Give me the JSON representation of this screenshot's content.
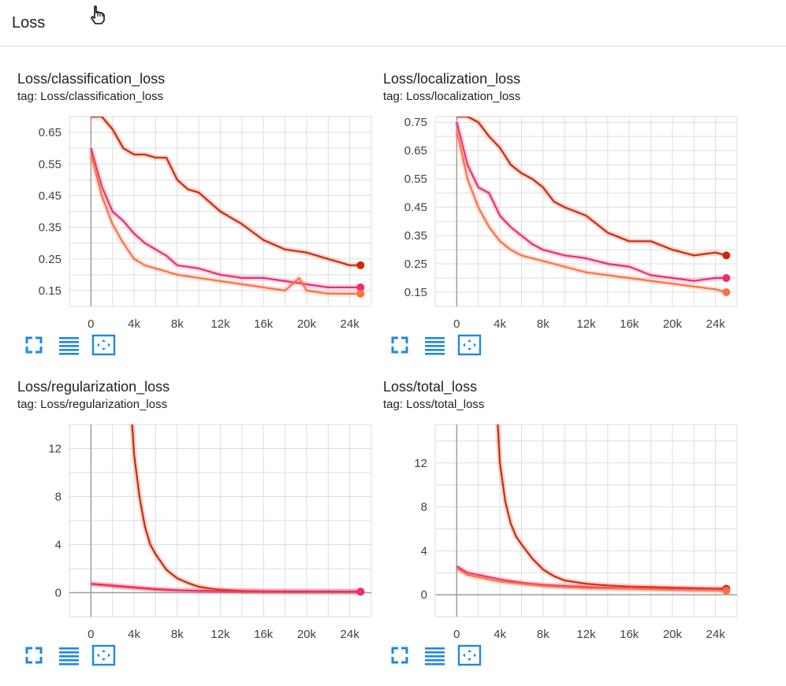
{
  "header": {
    "title": "Loss"
  },
  "colors": {
    "series_dark": "#cc2a0a",
    "series_orange": "#ff7043",
    "series_pink": "#ec2e6e",
    "axis": "#9e9e9e",
    "grid": "#dddddd",
    "toolbar_icon": "#1e88e5"
  },
  "toolbar_icons": [
    "fullscreen-icon",
    "data-table-icon",
    "fit-domain-icon"
  ],
  "cards": [
    {
      "title": "Loss/classification_loss",
      "tag": "tag: Loss/classification_loss"
    },
    {
      "title": "Loss/localization_loss",
      "tag": "tag: Loss/localization_loss"
    },
    {
      "title": "Loss/regularization_loss",
      "tag": "tag: Loss/regularization_loss"
    },
    {
      "title": "Loss/total_loss",
      "tag": "tag: Loss/total_loss"
    }
  ],
  "chart_data": [
    {
      "type": "line",
      "title": "Loss/classification_loss",
      "xlabel": "",
      "ylabel": "",
      "x_ticks": [
        "0",
        "4k",
        "8k",
        "12k",
        "16k",
        "20k",
        "24k"
      ],
      "y_ticks": [
        "0.15",
        "0.25",
        "0.35",
        "0.45",
        "0.55",
        "0.65"
      ],
      "xlim": [
        -2000,
        26000
      ],
      "ylim": [
        0.1,
        0.7
      ],
      "grid": true,
      "series": [
        {
          "color": "#cc2a0a",
          "x": [
            0,
            1000,
            2000,
            3000,
            4000,
            5000,
            6000,
            7000,
            8000,
            9000,
            10000,
            12000,
            14000,
            16000,
            18000,
            20000,
            22000,
            24000,
            25000
          ],
          "y": [
            0.7,
            0.7,
            0.66,
            0.6,
            0.58,
            0.58,
            0.57,
            0.57,
            0.5,
            0.47,
            0.46,
            0.4,
            0.36,
            0.31,
            0.28,
            0.27,
            0.25,
            0.23,
            0.23
          ]
        },
        {
          "color": "#ec2e6e",
          "x": [
            0,
            1000,
            2000,
            3000,
            4000,
            5000,
            6000,
            7000,
            8000,
            10000,
            12000,
            14000,
            16000,
            18000,
            20000,
            22000,
            24000,
            25000
          ],
          "y": [
            0.6,
            0.48,
            0.4,
            0.37,
            0.33,
            0.3,
            0.28,
            0.26,
            0.23,
            0.22,
            0.2,
            0.19,
            0.19,
            0.18,
            0.17,
            0.16,
            0.16,
            0.16
          ]
        },
        {
          "color": "#ff7043",
          "x": [
            0,
            1000,
            2000,
            3000,
            4000,
            5000,
            6000,
            7000,
            8000,
            10000,
            12000,
            14000,
            16000,
            18000,
            19300,
            20000,
            22000,
            24000,
            25000
          ],
          "y": [
            0.58,
            0.45,
            0.36,
            0.3,
            0.25,
            0.23,
            0.22,
            0.21,
            0.2,
            0.19,
            0.18,
            0.17,
            0.16,
            0.15,
            0.19,
            0.15,
            0.14,
            0.14,
            0.14
          ]
        }
      ]
    },
    {
      "type": "line",
      "title": "Loss/localization_loss",
      "xlabel": "",
      "ylabel": "",
      "x_ticks": [
        "0",
        "4k",
        "8k",
        "12k",
        "16k",
        "20k",
        "24k"
      ],
      "y_ticks": [
        "0.15",
        "0.25",
        "0.35",
        "0.45",
        "0.55",
        "0.65",
        "0.75"
      ],
      "xlim": [
        -2000,
        26000
      ],
      "ylim": [
        0.1,
        0.77
      ],
      "grid": true,
      "series": [
        {
          "color": "#cc2a0a",
          "x": [
            0,
            1000,
            2000,
            3000,
            4000,
            5000,
            6000,
            7000,
            8000,
            9000,
            10000,
            12000,
            14000,
            16000,
            18000,
            20000,
            22000,
            24000,
            25000
          ],
          "y": [
            0.77,
            0.77,
            0.75,
            0.7,
            0.66,
            0.6,
            0.57,
            0.55,
            0.52,
            0.47,
            0.45,
            0.42,
            0.36,
            0.33,
            0.33,
            0.3,
            0.28,
            0.29,
            0.28
          ]
        },
        {
          "color": "#ec2e6e",
          "x": [
            0,
            1000,
            2000,
            3000,
            4000,
            5000,
            6000,
            7000,
            8000,
            10000,
            12000,
            14000,
            16000,
            18000,
            20000,
            22000,
            24000,
            25000
          ],
          "y": [
            0.75,
            0.6,
            0.52,
            0.5,
            0.42,
            0.38,
            0.35,
            0.32,
            0.3,
            0.28,
            0.27,
            0.25,
            0.24,
            0.21,
            0.2,
            0.19,
            0.2,
            0.2
          ]
        },
        {
          "color": "#ff7043",
          "x": [
            0,
            1000,
            2000,
            3000,
            4000,
            5000,
            6000,
            7000,
            8000,
            10000,
            12000,
            14000,
            16000,
            18000,
            20000,
            22000,
            24000,
            25000
          ],
          "y": [
            0.72,
            0.55,
            0.45,
            0.38,
            0.33,
            0.3,
            0.28,
            0.27,
            0.26,
            0.24,
            0.22,
            0.21,
            0.2,
            0.19,
            0.18,
            0.17,
            0.16,
            0.15
          ]
        }
      ]
    },
    {
      "type": "line",
      "title": "Loss/regularization_loss",
      "xlabel": "",
      "ylabel": "",
      "x_ticks": [
        "0",
        "4k",
        "8k",
        "12k",
        "16k",
        "20k",
        "24k"
      ],
      "y_ticks": [
        "0",
        "4",
        "8",
        "12"
      ],
      "xlim": [
        -2000,
        26000
      ],
      "ylim": [
        -2,
        14
      ],
      "grid": true,
      "series": [
        {
          "color": "#cc2a0a",
          "x": [
            3800,
            4000,
            4500,
            5000,
            5500,
            6000,
            7000,
            8000,
            9000,
            10000,
            11000,
            12000,
            14000,
            16000,
            20000,
            25000
          ],
          "y": [
            14.2,
            11.5,
            8,
            5.5,
            4,
            3.2,
            1.9,
            1.2,
            0.8,
            0.5,
            0.35,
            0.25,
            0.15,
            0.1,
            0.08,
            0.07
          ]
        },
        {
          "color": "#ff7043",
          "x": [
            0,
            2000,
            4000,
            6000,
            8000,
            10000,
            12000,
            16000,
            20000,
            25000
          ],
          "y": [
            0.7,
            0.55,
            0.4,
            0.25,
            0.18,
            0.15,
            0.12,
            0.1,
            0.09,
            0.08
          ]
        },
        {
          "color": "#ec2e6e",
          "x": [
            0,
            2000,
            4000,
            6000,
            8000,
            10000,
            12000,
            16000,
            20000,
            25000
          ],
          "y": [
            0.75,
            0.6,
            0.45,
            0.3,
            0.2,
            0.16,
            0.13,
            0.11,
            0.1,
            0.09
          ]
        }
      ]
    },
    {
      "type": "line",
      "title": "Loss/total_loss",
      "xlabel": "",
      "ylabel": "",
      "x_ticks": [
        "0",
        "4k",
        "8k",
        "12k",
        "16k",
        "20k",
        "24k"
      ],
      "y_ticks": [
        "0",
        "4",
        "8",
        "12"
      ],
      "xlim": [
        -2000,
        26000
      ],
      "ylim": [
        -2,
        15.5
      ],
      "grid": true,
      "series": [
        {
          "color": "#cc2a0a",
          "x": [
            3800,
            4000,
            4500,
            5000,
            5500,
            6000,
            7000,
            8000,
            9000,
            10000,
            12000,
            14000,
            16000,
            18000,
            20000,
            22000,
            24000,
            25000
          ],
          "y": [
            15.5,
            12,
            8.5,
            6.5,
            5.3,
            4.6,
            3.3,
            2.3,
            1.7,
            1.3,
            1.0,
            0.85,
            0.75,
            0.7,
            0.65,
            0.6,
            0.55,
            0.55
          ]
        },
        {
          "color": "#ec2e6e",
          "x": [
            0,
            1000,
            2000,
            4000,
            6000,
            8000,
            10000,
            12000,
            16000,
            20000,
            24000,
            25000
          ],
          "y": [
            2.6,
            2.0,
            1.8,
            1.4,
            1.1,
            0.9,
            0.8,
            0.7,
            0.6,
            0.5,
            0.45,
            0.4
          ]
        },
        {
          "color": "#ff7043",
          "x": [
            0,
            1000,
            2000,
            4000,
            6000,
            8000,
            10000,
            12000,
            16000,
            20000,
            24000,
            25000
          ],
          "y": [
            2.4,
            1.8,
            1.6,
            1.2,
            1.0,
            0.8,
            0.7,
            0.6,
            0.55,
            0.45,
            0.4,
            0.35
          ]
        }
      ]
    }
  ]
}
